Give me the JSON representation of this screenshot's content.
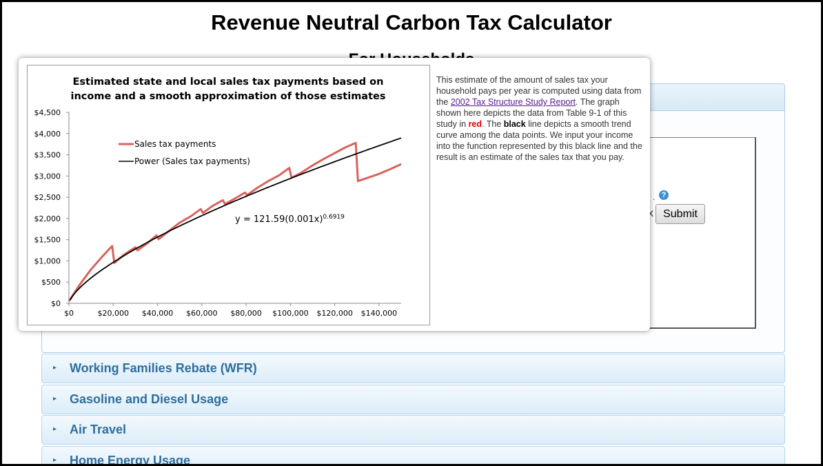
{
  "page": {
    "title": "Revenue Neutral Carbon Tax Calculator",
    "subtitle": "For Households"
  },
  "form": {
    "submit_label": "Submit",
    "help_glyph": "?"
  },
  "sections": [
    {
      "label": "Working Families Rebate (WFR)"
    },
    {
      "label": "Gasoline and Diesel Usage"
    },
    {
      "label": "Air Travel"
    },
    {
      "label": "Home Energy Usage"
    }
  ],
  "popup": {
    "text_part1": "This estimate of the amount of sales tax your household pays per year is computed using data from the ",
    "link_text": "2002 Tax Structure Study Report",
    "text_part2": ". The graph shown here depicts the data from Table 9-1 of this study in ",
    "red_word": "red",
    "text_part3": ". The ",
    "black_word": "black",
    "text_part4": " line depicts a smooth trend curve among the data points. We input your income into the function represented by this black line and the result is an estimate of the sales tax that you pay."
  },
  "chart_data": {
    "type": "line",
    "title_line1": "Estimated state and local sales tax payments based on",
    "title_line2": "income and a smooth approximation of those estimates",
    "xlim": [
      0,
      150000
    ],
    "ylim": [
      0,
      4500
    ],
    "x_ticks": [
      0,
      20000,
      40000,
      60000,
      80000,
      100000,
      120000,
      140000
    ],
    "x_tick_labels": [
      "$0",
      "$20,000",
      "$40,000",
      "$60,000",
      "$80,000",
      "$100,000",
      "$120,000",
      "$140,000"
    ],
    "y_ticks": [
      0,
      500,
      1000,
      1500,
      2000,
      2500,
      3000,
      3500,
      4000,
      4500
    ],
    "y_tick_labels": [
      "$0",
      "$500",
      "$1,000",
      "$1,500",
      "$2,000",
      "$2,500",
      "$3,000",
      "$3,500",
      "$4,000",
      "$4,500"
    ],
    "legend_position": "upper-left",
    "equation_text": "y = 121.59(0.001x)",
    "equation_exp": "0.6919",
    "series": [
      {
        "name": "Sales tax payments",
        "color": "#d9625c",
        "points": [
          [
            0,
            50
          ],
          [
            5000,
            450
          ],
          [
            10000,
            800
          ],
          [
            15000,
            1100
          ],
          [
            19500,
            1350
          ],
          [
            20500,
            950
          ],
          [
            25000,
            1150
          ],
          [
            30000,
            1320
          ],
          [
            31000,
            1250
          ],
          [
            35000,
            1400
          ],
          [
            39500,
            1600
          ],
          [
            40500,
            1510
          ],
          [
            45000,
            1700
          ],
          [
            50000,
            1900
          ],
          [
            55000,
            2050
          ],
          [
            59500,
            2220
          ],
          [
            60500,
            2130
          ],
          [
            65000,
            2300
          ],
          [
            69500,
            2430
          ],
          [
            70500,
            2340
          ],
          [
            75000,
            2470
          ],
          [
            79500,
            2610
          ],
          [
            80500,
            2550
          ],
          [
            85000,
            2720
          ],
          [
            90000,
            2880
          ],
          [
            95000,
            3020
          ],
          [
            99500,
            3190
          ],
          [
            100500,
            2960
          ],
          [
            105000,
            3080
          ],
          [
            110000,
            3250
          ],
          [
            115000,
            3400
          ],
          [
            120000,
            3540
          ],
          [
            125000,
            3680
          ],
          [
            129500,
            3780
          ],
          [
            130500,
            2880
          ],
          [
            135000,
            2960
          ],
          [
            140000,
            3050
          ],
          [
            145000,
            3160
          ],
          [
            150000,
            3280
          ]
        ]
      },
      {
        "name": "Power (Sales tax payments)",
        "color": "#000000",
        "formula": {
          "a": 121.59,
          "scale": 0.001,
          "b": 0.6919
        },
        "x_start": 500,
        "x_end": 150000
      }
    ]
  }
}
